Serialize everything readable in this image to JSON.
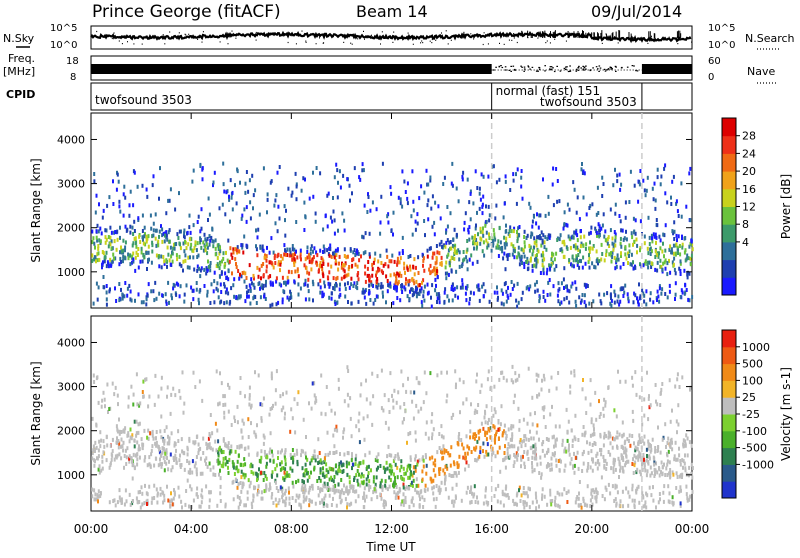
{
  "header": {
    "station": "Prince George (fitACF)",
    "beam": "Beam 14",
    "date": "09/Jul/2014"
  },
  "left_labels": {
    "nsky": "N.Sky",
    "freq": "Freq.",
    "freq_unit": "[MHz]",
    "cpid": "CPID"
  },
  "right_labels": {
    "nsearch": "N.Search",
    "nave": "Nave"
  },
  "noise_axis": {
    "ticks_left": [
      "10^5",
      "10^0"
    ],
    "ticks_right": [
      "10^5",
      "10^0"
    ]
  },
  "freq_axis": {
    "ticks_left": [
      "18",
      "8"
    ],
    "ticks_right": [
      "60",
      "0"
    ]
  },
  "cpid_segments": [
    {
      "label": "twofsound 3503",
      "start_hr": 0,
      "end_hr": 16
    },
    {
      "label": "normal (fast) 151",
      "start_hr": 16,
      "end_hr": 22
    },
    {
      "label": "twofsound 3503",
      "start_hr": 22,
      "end_hr": 24
    }
  ],
  "chart_data": [
    {
      "type": "heatmap",
      "name": "power-panel",
      "ylabel": "Slant Range [km]",
      "ylim": [
        180,
        4600
      ],
      "yticks": [
        1000,
        2000,
        3000,
        4000
      ],
      "xlim": [
        0,
        24
      ],
      "colorbar": {
        "label": "Power [dB]",
        "ticks": [
          "28",
          "24",
          "20",
          "16",
          "12",
          "8",
          "4"
        ],
        "colors": [
          "#1a1aff",
          "#1e3fb0",
          "#2e6f9a",
          "#3c9a6a",
          "#6ac23c",
          "#c8d21c",
          "#f0a21a",
          "#f06a14",
          "#ee3018",
          "#dd0000"
        ]
      }
    },
    {
      "type": "heatmap",
      "name": "velocity-panel",
      "ylabel": "Slant Range [km]",
      "ylim": [
        180,
        4600
      ],
      "yticks": [
        1000,
        2000,
        3000,
        4000
      ],
      "xlim": [
        0,
        24
      ],
      "xlabel": "Time UT",
      "xticks": [
        "00:00",
        "04:00",
        "08:00",
        "12:00",
        "16:00",
        "20:00",
        "00:00"
      ],
      "colorbar": {
        "label": "Velocity [m s-1]",
        "ticks": [
          "1000",
          "500",
          "100",
          "25",
          "-25",
          "-100",
          "-500",
          "-1000"
        ],
        "colors": [
          "#2034cc",
          "#2a5a8a",
          "#2e8050",
          "#4ab02a",
          "#7cd030",
          "#bebebe",
          "#f2b428",
          "#f08a18",
          "#ee5a14",
          "#e82010"
        ]
      }
    }
  ]
}
